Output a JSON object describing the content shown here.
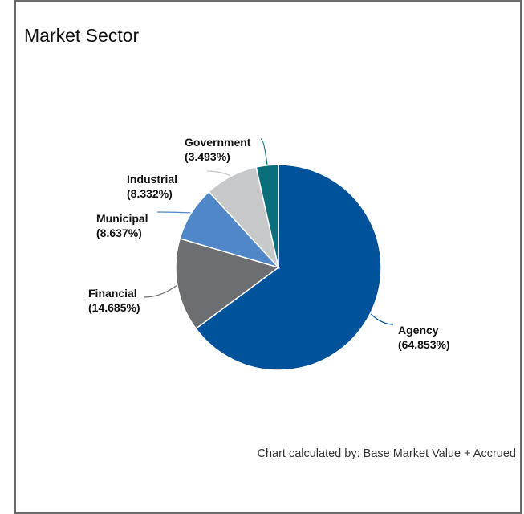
{
  "panel": {
    "title": "Market Sector",
    "footnote": "Chart calculated by: Base Market Value + Accrued"
  },
  "chart_data": {
    "type": "pie",
    "title": "Market Sector",
    "slices": [
      {
        "label": "Agency",
        "value": 64.853,
        "display": "(64.853%)",
        "color": "#00539b"
      },
      {
        "label": "Financial",
        "value": 14.685,
        "display": "(14.685%)",
        "color": "#6d6e71"
      },
      {
        "label": "Municipal",
        "value": 8.637,
        "display": "(8.637%)",
        "color": "#4f87c8"
      },
      {
        "label": "Industrial",
        "value": 8.332,
        "display": "(8.332%)",
        "color": "#c7c8ca"
      },
      {
        "label": "Government",
        "value": 3.493,
        "display": "(3.493%)",
        "color": "#0a6f7b"
      }
    ],
    "direction": "clockwise",
    "start": "top"
  }
}
